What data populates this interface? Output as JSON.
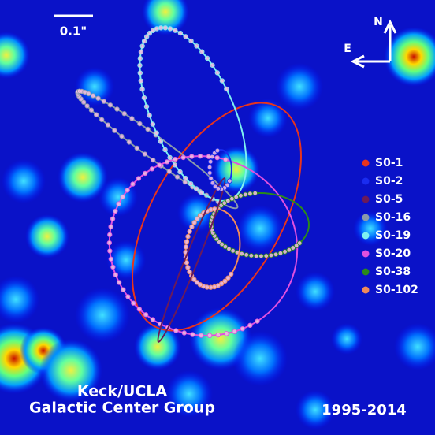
{
  "scale_bar": {
    "label": "0.1\""
  },
  "compass": {
    "north": "N",
    "east": "E"
  },
  "legend": {
    "items": [
      {
        "name": "S0-1",
        "color": "#e8341c"
      },
      {
        "name": "S0-2",
        "color": "#1a2cf0"
      },
      {
        "name": "S0-5",
        "color": "#6a1a5a"
      },
      {
        "name": "S0-16",
        "color": "#8a9aaa"
      },
      {
        "name": "S0-19",
        "color": "#7ef0f0"
      },
      {
        "name": "S0-20",
        "color": "#e050e0"
      },
      {
        "name": "S0-38",
        "color": "#2a8a1a"
      },
      {
        "name": "S0-102",
        "color": "#f08a5a"
      }
    ]
  },
  "credit": {
    "line1": "Keck/UCLA",
    "line2": "Galactic Center Group"
  },
  "date_range": "1995-2014"
}
